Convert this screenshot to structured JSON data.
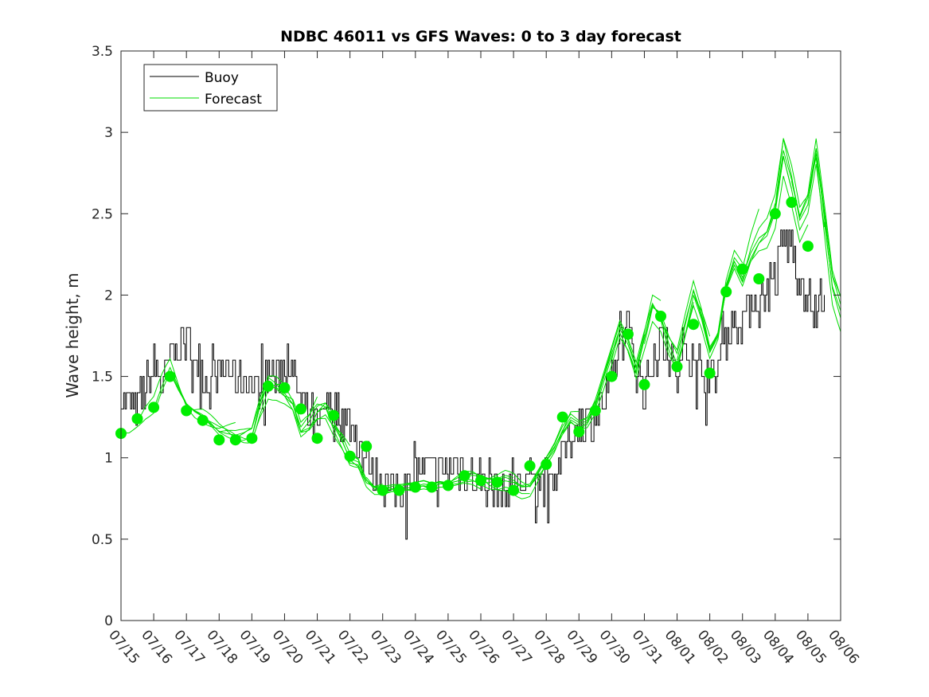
{
  "chart_data": {
    "type": "line",
    "title": "NDBC 46011 vs GFS Waves: 0 to 3 day forecast",
    "xlabel": "",
    "ylabel": "Wave height, m",
    "x_unit": "day index (0 = 07/15)",
    "xlim": [
      0,
      22
    ],
    "ylim": [
      0,
      3.5
    ],
    "y_ticks": [
      0,
      0.5,
      1,
      1.5,
      2,
      2.5,
      3,
      3.5
    ],
    "y_tick_labels": [
      "0",
      "0.5",
      "1",
      "1.5",
      "2",
      "2.5",
      "3",
      "3.5"
    ],
    "x_tick_labels": [
      "07/15",
      "07/16",
      "07/17",
      "07/18",
      "07/19",
      "07/20",
      "07/21",
      "07/22",
      "07/23",
      "07/24",
      "07/25",
      "07/26",
      "07/27",
      "07/28",
      "07/29",
      "07/30",
      "07/31",
      "08/01",
      "08/02",
      "08/03",
      "08/04",
      "08/05",
      "08/06"
    ],
    "grid": false,
    "legend": {
      "position": "top-left",
      "entries": [
        {
          "label": "Buoy",
          "color": "#000000"
        },
        {
          "label": "Forecast",
          "color": "#00dd00"
        }
      ]
    },
    "buoy": {
      "name": "Buoy",
      "color": "#000000",
      "x": [
        0.0,
        0.25,
        0.5,
        0.75,
        1.0,
        1.25,
        1.5,
        1.75,
        2.0,
        2.25,
        2.5,
        2.75,
        3.0,
        3.25,
        3.5,
        3.75,
        4.0,
        4.25,
        4.5,
        4.75,
        5.0,
        5.25,
        5.5,
        5.75,
        6.0,
        6.25,
        6.5,
        6.75,
        7.0,
        7.25,
        7.5,
        7.75,
        8.0,
        8.25,
        8.5,
        8.75,
        9.0,
        9.25,
        9.5,
        9.75,
        10.0,
        10.25,
        10.5,
        10.75,
        11.0,
        11.25,
        11.5,
        11.75,
        12.0,
        12.25,
        12.5,
        12.75,
        13.0,
        13.25,
        13.5,
        13.75,
        14.0,
        14.25,
        14.5,
        14.75,
        15.0,
        15.25,
        15.5,
        15.75,
        16.0,
        16.25,
        16.5,
        16.75,
        17.0,
        17.25,
        17.5,
        17.75,
        18.0,
        18.25,
        18.5,
        18.75,
        19.0,
        19.25,
        19.5,
        19.75,
        20.0,
        20.25,
        20.5,
        20.75,
        21.0,
        21.25,
        21.5
      ],
      "values": [
        1.4,
        1.3,
        1.3,
        1.45,
        1.55,
        1.45,
        1.6,
        1.7,
        1.75,
        1.65,
        1.5,
        1.45,
        1.5,
        1.55,
        1.45,
        1.5,
        1.45,
        1.4,
        1.55,
        1.5,
        1.55,
        1.55,
        1.3,
        1.25,
        1.2,
        1.3,
        1.35,
        1.25,
        1.2,
        1.1,
        1.0,
        0.9,
        0.85,
        0.8,
        0.8,
        0.85,
        0.9,
        0.95,
        0.95,
        0.95,
        0.9,
        0.95,
        0.9,
        0.9,
        0.85,
        0.85,
        0.8,
        0.8,
        0.85,
        0.85,
        0.85,
        0.85,
        0.85,
        0.9,
        1.0,
        1.15,
        1.2,
        1.25,
        1.25,
        1.35,
        1.45,
        1.7,
        1.8,
        1.55,
        1.4,
        1.55,
        1.75,
        1.6,
        1.5,
        1.6,
        1.7,
        1.55,
        1.5,
        1.55,
        1.7,
        1.85,
        1.85,
        1.95,
        1.95,
        2.05,
        2.1,
        2.35,
        2.3,
        2.1,
        2.0,
        1.85,
        2.05
      ]
    },
    "forecast_mean": {
      "name": "Forecast",
      "color": "#00dd00",
      "x": [
        0.0,
        0.25,
        0.5,
        0.75,
        1.0,
        1.25,
        1.5,
        1.75,
        2.0,
        2.25,
        2.5,
        2.75,
        3.0,
        3.25,
        3.5,
        3.75,
        4.0,
        4.25,
        4.5,
        4.75,
        5.0,
        5.25,
        5.5,
        5.75,
        6.0,
        6.25,
        6.5,
        6.75,
        7.0,
        7.25,
        7.5,
        7.75,
        8.0,
        8.25,
        8.5,
        8.75,
        9.0,
        9.25,
        9.5,
        9.75,
        10.0,
        10.25,
        10.5,
        10.75,
        11.0,
        11.25,
        11.5,
        11.75,
        12.0,
        12.25,
        12.5,
        12.75,
        13.0,
        13.25,
        13.5,
        13.75,
        14.0,
        14.25,
        14.5,
        14.75,
        15.0,
        15.25,
        15.5,
        15.75,
        16.0,
        16.25,
        16.5,
        16.75,
        17.0,
        17.25,
        17.5,
        17.75,
        18.0,
        18.25,
        18.5,
        18.75,
        19.0,
        19.25,
        19.5,
        19.75,
        20.0,
        20.25,
        20.5,
        20.75,
        21.0,
        21.25,
        21.5,
        21.75,
        22.0
      ],
      "values": [
        1.15,
        1.17,
        1.22,
        1.27,
        1.3,
        1.42,
        1.52,
        1.4,
        1.3,
        1.26,
        1.24,
        1.2,
        1.16,
        1.14,
        1.12,
        1.12,
        1.13,
        1.3,
        1.43,
        1.42,
        1.38,
        1.32,
        1.16,
        1.2,
        1.28,
        1.3,
        1.2,
        1.12,
        1.02,
        1.0,
        0.88,
        0.83,
        0.82,
        0.82,
        0.82,
        0.82,
        0.82,
        0.83,
        0.82,
        0.84,
        0.84,
        0.86,
        0.88,
        0.88,
        0.86,
        0.84,
        0.84,
        0.86,
        0.85,
        0.82,
        0.82,
        0.9,
        0.98,
        1.05,
        1.15,
        1.22,
        1.18,
        1.2,
        1.3,
        1.45,
        1.6,
        1.75,
        1.65,
        1.5,
        1.7,
        1.9,
        1.85,
        1.7,
        1.6,
        1.8,
        2.0,
        1.85,
        1.65,
        1.75,
        2.05,
        2.2,
        2.1,
        2.25,
        2.35,
        2.4,
        2.55,
        2.9,
        2.7,
        2.45,
        2.55,
        2.85,
        2.45,
        2.05,
        1.9
      ]
    },
    "forecast_markers": {
      "name": "Forecast",
      "color": "#00ee00",
      "x": [
        0.0,
        0.5,
        1.0,
        1.5,
        2.0,
        2.5,
        3.0,
        3.5,
        4.0,
        4.5,
        5.0,
        5.5,
        6.0,
        6.5,
        7.0,
        7.5,
        8.0,
        8.5,
        9.0,
        9.5,
        10.0,
        10.5,
        11.0,
        11.5,
        12.0,
        12.5,
        13.0,
        13.5,
        14.0,
        14.5,
        15.0,
        15.5,
        16.0,
        16.5,
        17.0,
        17.5,
        18.0,
        18.5,
        19.0,
        19.5,
        20.0,
        20.5,
        21.0
      ],
      "values": [
        1.15,
        1.24,
        1.31,
        1.5,
        1.29,
        1.23,
        1.11,
        1.11,
        1.12,
        1.44,
        1.43,
        1.3,
        1.12,
        1.26,
        1.01,
        1.07,
        0.8,
        0.8,
        0.82,
        0.82,
        0.83,
        0.89,
        0.86,
        0.85,
        0.8,
        0.95,
        0.96,
        1.25,
        1.16,
        1.29,
        1.5,
        1.76,
        1.45,
        1.87,
        1.56,
        1.82,
        1.52,
        2.02,
        2.16,
        2.1,
        2.5,
        2.57,
        2.3
      ]
    }
  }
}
